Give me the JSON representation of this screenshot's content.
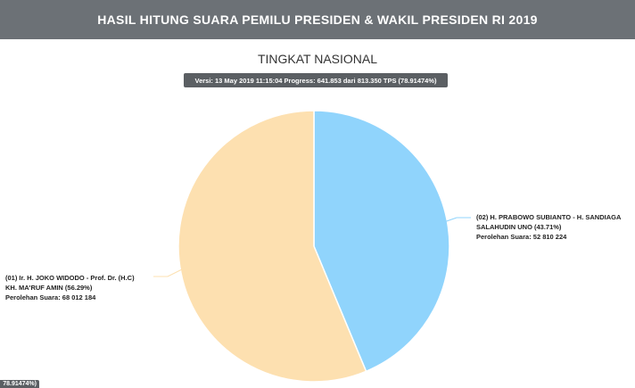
{
  "header": {
    "title": "HASIL HITUNG SUARA PEMILU PRESIDEN & WAKIL PRESIDEN RI 2019"
  },
  "chart_data": {
    "type": "pie",
    "title": "TINGKAT NASIONAL",
    "subtitle": "Versi: 13 May 2019 11:15:04 Progress: 641.853 dari 813.350 TPS (78.91474%)",
    "slices": [
      {
        "label_line1": "(02) H. PRABOWO SUBIANTO - H. SANDIAGA",
        "label_line2": "SALAHUDIN UNO (43.71%)",
        "votes_text": "Perolehan Suara: 52 810 224",
        "value": 52810224,
        "percent": 43.71,
        "color": "#90d4fc"
      },
      {
        "label_line1": "(01) Ir. H. JOKO WIDODO - Prof. Dr. (H.C)",
        "label_line2": "KH. MA'RUF AMIN (56.29%)",
        "votes_text": "Perolehan Suara: 68 012 184",
        "value": 68012184,
        "percent": 56.29,
        "color": "#fde0b0"
      }
    ]
  },
  "footer_badge": {
    "text": "78.91474%)"
  }
}
